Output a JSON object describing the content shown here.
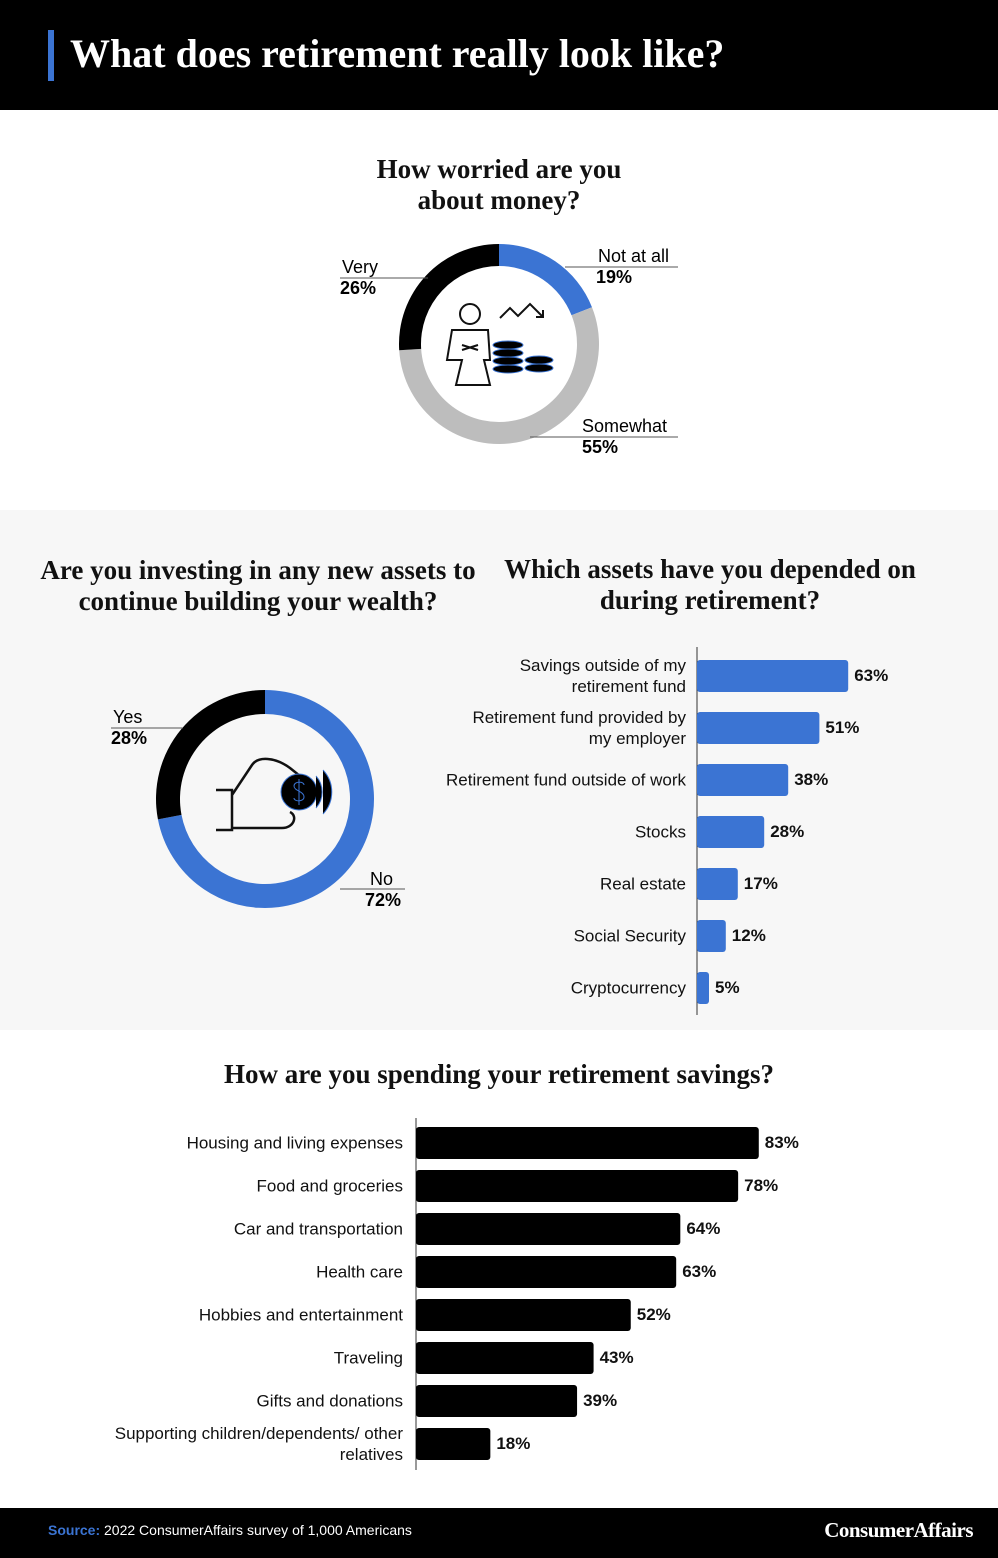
{
  "header": {
    "title": "What does retirement really look like?"
  },
  "chart_data": [
    {
      "type": "donut",
      "title": "How worried are you about money?",
      "categories": [
        "Not at all",
        "Somewhat",
        "Very"
      ],
      "values": [
        19,
        55,
        26
      ],
      "value_labels": [
        "19%",
        "55%",
        "26%"
      ],
      "colors": [
        "#3b74d3",
        "#bdbdbd",
        "#000000"
      ]
    },
    {
      "type": "donut",
      "title": "Are you investing in any new assets to continue building your wealth?",
      "categories": [
        "No",
        "Yes"
      ],
      "values": [
        72,
        28
      ],
      "value_labels": [
        "72%",
        "28%"
      ],
      "colors": [
        "#3b74d3",
        "#000000"
      ]
    },
    {
      "type": "hbar",
      "title": "Which assets have you depended on during retirement?",
      "categories": [
        "Savings outside of my retirement fund",
        "Retirement fund provided by my employer",
        "Retirement fund outside of work",
        "Stocks",
        "Real estate",
        "Social Security",
        "Cryptocurrency"
      ],
      "values": [
        63,
        51,
        38,
        28,
        17,
        12,
        5
      ],
      "value_labels": [
        "63%",
        "51%",
        "38%",
        "28%",
        "17%",
        "12%",
        "5%"
      ],
      "color": "#3b74d3"
    },
    {
      "type": "hbar",
      "title": "How are you spending your retirement savings?",
      "categories": [
        "Housing and living expenses",
        "Food and groceries",
        "Car and transportation",
        "Health care",
        "Hobbies and entertainment",
        "Traveling",
        "Gifts and donations",
        "Supporting children/dependents/ other relatives"
      ],
      "values": [
        83,
        78,
        64,
        63,
        52,
        43,
        39,
        18
      ],
      "value_labels": [
        "83%",
        "78%",
        "64%",
        "63%",
        "52%",
        "43%",
        "39%",
        "18%"
      ],
      "color": "#000000"
    }
  ],
  "footer": {
    "source_label": "Source:",
    "source": "2022 ConsumerAffairs survey of 1,000 Americans",
    "brand": "ConsumerAffairs"
  }
}
